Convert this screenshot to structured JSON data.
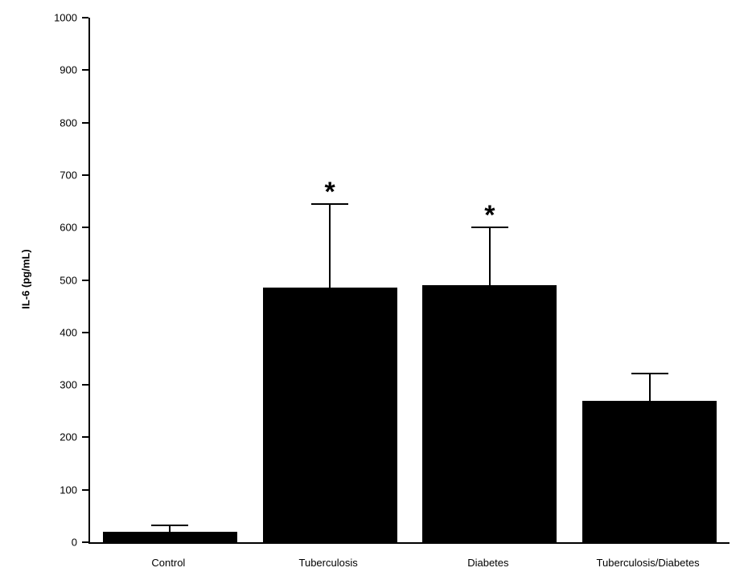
{
  "chart_data": {
    "type": "bar",
    "title": "",
    "ylabel": "IL-6 (pg/mL)",
    "xlabel": "",
    "ylim": [
      0,
      1000
    ],
    "ytick_step": 100,
    "grid": false,
    "legend_position": "none",
    "bar_color": "#000000",
    "axis_color": "#000000",
    "categories": [
      "Control",
      "Tuberculosis",
      "Diabetes",
      "Tuberculosis/Diabetes"
    ],
    "values": [
      20,
      485,
      490,
      270
    ],
    "errors_upper": [
      12,
      160,
      110,
      52
    ],
    "significance": [
      "",
      "*",
      "*",
      ""
    ]
  }
}
